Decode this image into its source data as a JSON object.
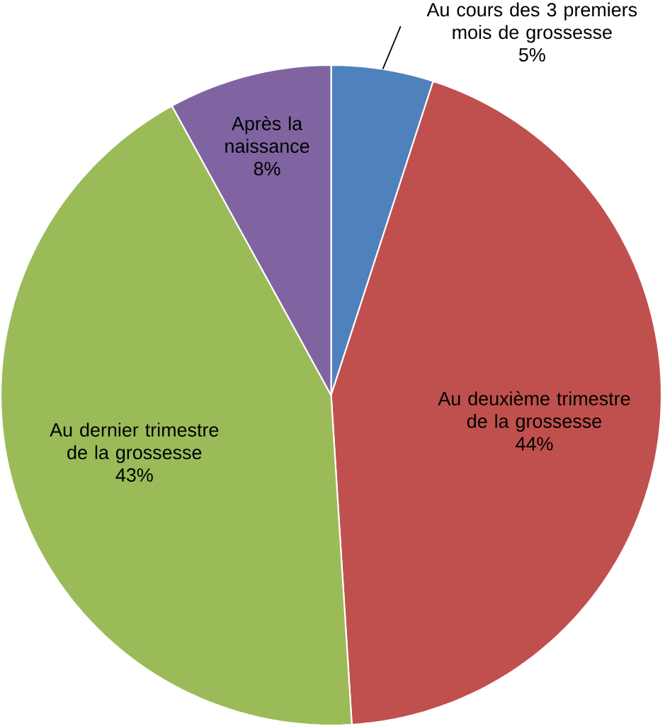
{
  "chart_data": {
    "type": "pie",
    "categories": [
      "Au cours des 3 premiers mois de grossesse",
      "Au deuxième trimestre de la grossesse",
      "Au dernier trimestre de la grossesse",
      "Après la naissance"
    ],
    "values": [
      5,
      44,
      43,
      8
    ],
    "value_labels": [
      "5%",
      "44%",
      "43%",
      "8%"
    ],
    "colors": [
      "#4f81bd",
      "#c0504d",
      "#9bbb59",
      "#8064a2"
    ]
  }
}
